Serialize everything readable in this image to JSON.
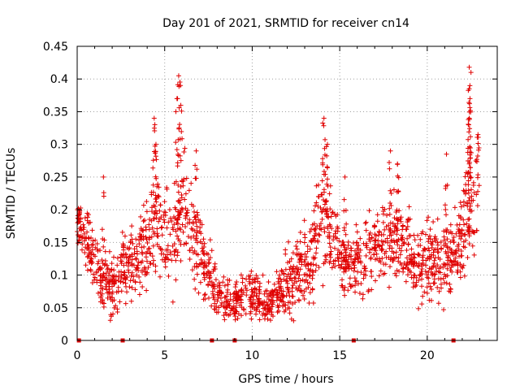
{
  "chart_data": {
    "type": "scatter",
    "title": "Day 201 of 2021, SRMTID for receiver cn14",
    "xlabel": "GPS time / hours",
    "ylabel": "SRMTID / TECUs",
    "xlim": [
      0,
      24
    ],
    "ylim": [
      0,
      0.45
    ],
    "xticks": [
      0,
      5,
      10,
      15,
      20
    ],
    "xtick_labels": [
      "0",
      "5",
      "10",
      "15",
      "20"
    ],
    "yticks": [
      0,
      0.05,
      0.1,
      0.15,
      0.2,
      0.25,
      0.3,
      0.35,
      0.4,
      0.45
    ],
    "ytick_labels": [
      "0",
      "0.05",
      "0.1",
      "0.15",
      "0.2",
      "0.25",
      "0.3",
      "0.35",
      "0.4",
      "0.45"
    ],
    "grid": true,
    "marker": "+",
    "color": "#e00000",
    "baseline_markers_x": [
      0.1,
      2.6,
      7.7,
      9.0,
      15.8,
      21.5
    ],
    "envelope": {
      "x": [
        0.0,
        0.5,
        1.0,
        1.5,
        2.0,
        2.5,
        3.0,
        3.5,
        4.0,
        4.5,
        5.0,
        5.5,
        6.0,
        6.5,
        7.0,
        7.5,
        8.0,
        8.5,
        9.0,
        9.5,
        10.0,
        10.5,
        11.0,
        11.5,
        12.0,
        12.5,
        13.0,
        13.5,
        14.0,
        14.5,
        15.0,
        15.5,
        16.0,
        16.5,
        17.0,
        17.5,
        18.0,
        18.5,
        19.0,
        19.5,
        20.0,
        20.5,
        21.0,
        21.5,
        22.0,
        22.5,
        23.0
      ],
      "mid": [
        0.18,
        0.16,
        0.12,
        0.09,
        0.08,
        0.11,
        0.12,
        0.12,
        0.15,
        0.19,
        0.16,
        0.15,
        0.2,
        0.17,
        0.14,
        0.1,
        0.065,
        0.06,
        0.06,
        0.06,
        0.07,
        0.06,
        0.055,
        0.07,
        0.09,
        0.1,
        0.12,
        0.13,
        0.2,
        0.16,
        0.13,
        0.12,
        0.12,
        0.13,
        0.14,
        0.15,
        0.16,
        0.15,
        0.14,
        0.12,
        0.12,
        0.12,
        0.12,
        0.13,
        0.16,
        0.2,
        0.22
      ],
      "spread": [
        0.03,
        0.04,
        0.05,
        0.05,
        0.04,
        0.05,
        0.05,
        0.05,
        0.06,
        0.08,
        0.06,
        0.07,
        0.09,
        0.07,
        0.06,
        0.05,
        0.03,
        0.03,
        0.03,
        0.03,
        0.03,
        0.03,
        0.025,
        0.03,
        0.04,
        0.05,
        0.05,
        0.06,
        0.08,
        0.06,
        0.05,
        0.05,
        0.05,
        0.05,
        0.05,
        0.05,
        0.06,
        0.05,
        0.05,
        0.05,
        0.05,
        0.05,
        0.06,
        0.06,
        0.07,
        0.08,
        0.08
      ]
    },
    "peaks": [
      {
        "x": 0.1,
        "y": 0.2
      },
      {
        "x": 1.5,
        "y": 0.25
      },
      {
        "x": 4.4,
        "y": 0.34
      },
      {
        "x": 4.5,
        "y": 0.3
      },
      {
        "x": 5.8,
        "y": 0.405
      },
      {
        "x": 5.9,
        "y": 0.39
      },
      {
        "x": 5.7,
        "y": 0.37
      },
      {
        "x": 6.8,
        "y": 0.29
      },
      {
        "x": 14.1,
        "y": 0.34
      },
      {
        "x": 14.3,
        "y": 0.3
      },
      {
        "x": 15.3,
        "y": 0.25
      },
      {
        "x": 17.9,
        "y": 0.29
      },
      {
        "x": 18.3,
        "y": 0.27
      },
      {
        "x": 21.1,
        "y": 0.285
      },
      {
        "x": 22.4,
        "y": 0.418
      },
      {
        "x": 22.5,
        "y": 0.41
      },
      {
        "x": 22.4,
        "y": 0.385
      },
      {
        "x": 22.4,
        "y": 0.34
      },
      {
        "x": 22.9,
        "y": 0.315
      }
    ]
  }
}
